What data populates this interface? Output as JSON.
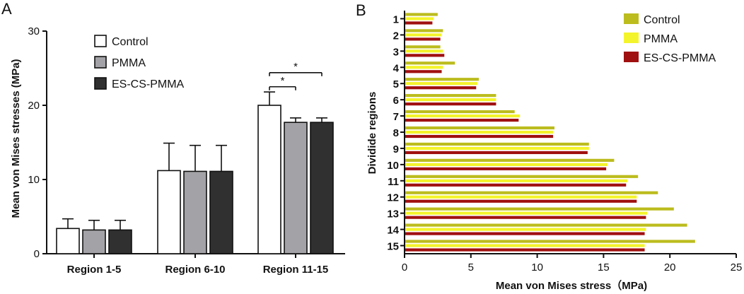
{
  "chart_data": [
    {
      "panel": "A",
      "type": "bar",
      "title": "",
      "xlabel": "",
      "ylabel": "Mean von Mises stresses (MPa)",
      "ylim": [
        0,
        30
      ],
      "yticks": [
        0,
        10,
        20,
        30
      ],
      "categories": [
        "Region 1-5",
        "Region 6-10",
        "Region 11-15"
      ],
      "series": [
        {
          "name": "Control",
          "color": "#ffffff",
          "values": [
            3.4,
            11.2,
            20.0
          ],
          "errors": [
            1.3,
            3.7,
            1.8
          ]
        },
        {
          "name": "PMMA",
          "color": "#a3a3a7",
          "values": [
            3.2,
            11.1,
            17.7
          ],
          "errors": [
            1.3,
            3.5,
            0.6
          ]
        },
        {
          "name": "ES-CS-PMMA",
          "color": "#303030",
          "values": [
            3.2,
            11.1,
            17.7
          ],
          "errors": [
            1.3,
            3.5,
            0.6
          ]
        }
      ],
      "significance": [
        {
          "category": "Region 11-15",
          "from": "Control",
          "to": "PMMA",
          "label": "*"
        },
        {
          "category": "Region 11-15",
          "from": "Control",
          "to": "ES-CS-PMMA",
          "label": "*"
        }
      ],
      "legend_position": "top-left"
    },
    {
      "panel": "B",
      "type": "bar",
      "orientation": "horizontal",
      "title": "",
      "xlabel": "Mean  von Mises stress（MPa)",
      "ylabel": "Dividide regions",
      "xlim": [
        0,
        25
      ],
      "xticks": [
        0,
        5,
        10,
        15,
        20,
        25
      ],
      "categories": [
        "1",
        "2",
        "3",
        "4",
        "5",
        "6",
        "7",
        "8",
        "9",
        "10",
        "11",
        "12",
        "13",
        "14",
        "15"
      ],
      "series": [
        {
          "name": "Control",
          "color": "#bcbc1e",
          "values": [
            2.5,
            2.9,
            2.7,
            3.8,
            5.6,
            6.9,
            8.3,
            11.3,
            13.9,
            15.8,
            17.6,
            19.1,
            20.3,
            21.3,
            21.9
          ]
        },
        {
          "name": "PMMA",
          "color": "#f4f42c",
          "values": [
            2.2,
            2.8,
            2.9,
            2.9,
            5.5,
            6.9,
            8.7,
            11.2,
            13.9,
            15.3,
            16.8,
            17.5,
            18.3,
            18.2,
            18.1
          ]
        },
        {
          "name": "ES-CS-PMMA",
          "color": "#a01010",
          "values": [
            2.1,
            2.7,
            3.0,
            2.8,
            5.4,
            6.9,
            8.6,
            11.2,
            13.8,
            15.2,
            16.7,
            17.5,
            18.2,
            18.1,
            18.1
          ]
        }
      ],
      "legend_position": "top-right"
    }
  ],
  "panels": {
    "a_letter": "A",
    "b_letter": "B"
  }
}
